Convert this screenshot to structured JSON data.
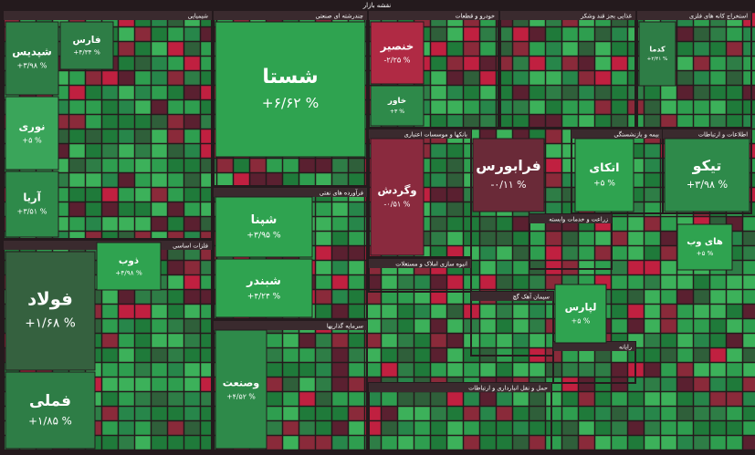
{
  "title": "نقشه بازار",
  "sectors": [
    {
      "name": "شیمیایی"
    },
    {
      "name": "چندرشته ای صنعتی"
    },
    {
      "name": "خودرو و قطعات"
    },
    {
      "name": "غذایی بجز قند وشکر"
    },
    {
      "name": "استخراج کانه های فلزی"
    },
    {
      "name": "فرآورده های نفتی"
    },
    {
      "name": "فلزات اساسی"
    },
    {
      "name": "سرمایه گذاریها"
    },
    {
      "name": "بانکها و موسسات اعتباری"
    },
    {
      "name": "بیمه و بازنشستگی"
    },
    {
      "name": "اطلاعات و ارتباطات"
    },
    {
      "name": "انبوه سازی املاک و مستغلات"
    },
    {
      "name": "سیمان آهک گچ"
    },
    {
      "name": "رایانه"
    },
    {
      "name": "زراعت و خدمات وابسته"
    },
    {
      "name": "حمل و نقل انبارداری و ارتباطات"
    }
  ],
  "tiles": [
    {
      "symbol": "شستا",
      "change": "+۶/۶۲ %",
      "color": "#2fa350"
    },
    {
      "symbol": "شپدیس",
      "change": "+۳/۹۸ %",
      "color": "#2e7d46"
    },
    {
      "symbol": "نوری",
      "change": "+۵ %",
      "color": "#3aa55a"
    },
    {
      "symbol": "آریا",
      "change": "+۳/۵۱ %",
      "color": "#2e8a4a"
    },
    {
      "symbol": "فارس",
      "change": "+۴/۳۴ %",
      "color": "#2e7d46"
    },
    {
      "symbol": "فولاد",
      "change": "+۱/۶۸ %",
      "color": "#35613f"
    },
    {
      "symbol": "فملی",
      "change": "+۱/۸۵ %",
      "color": "#2e7d46"
    },
    {
      "symbol": "ذوب",
      "change": "+۴/۹۸ %",
      "color": "#2fa350"
    },
    {
      "symbol": "شپنا",
      "change": "+۳/۹۵ %",
      "color": "#2fa350"
    },
    {
      "symbol": "شبندر",
      "change": "+۴/۲۴ %",
      "color": "#2fa350"
    },
    {
      "symbol": "وصنعت",
      "change": "+۴/۵۲ %",
      "color": "#2e8a4a"
    },
    {
      "symbol": "خنصیر",
      "change": "-۲/۲۵ %",
      "color": "#b02a44"
    },
    {
      "symbol": "خاور",
      "change": "+۳ %",
      "color": "#2e8a4a"
    },
    {
      "symbol": "وگردش",
      "change": "-۰/۵۱ %",
      "color": "#8a2a3e"
    },
    {
      "symbol": "فرابورس",
      "change": "-۰/۱۱ %",
      "color": "#6a2a38"
    },
    {
      "symbol": "اتکای",
      "change": "+۵ %",
      "color": "#2fa350"
    },
    {
      "symbol": "تیکو",
      "change": "+۳/۹۸ %",
      "color": "#2e8a4a"
    },
    {
      "symbol": "لپارس",
      "change": "+۵ %",
      "color": "#2fa350"
    },
    {
      "symbol": "کدما",
      "change": "+۲/۴۱ %",
      "color": "#2e7d46"
    },
    {
      "symbol": "های وب",
      "change": "+۵ %",
      "color": "#2fa350"
    }
  ]
}
